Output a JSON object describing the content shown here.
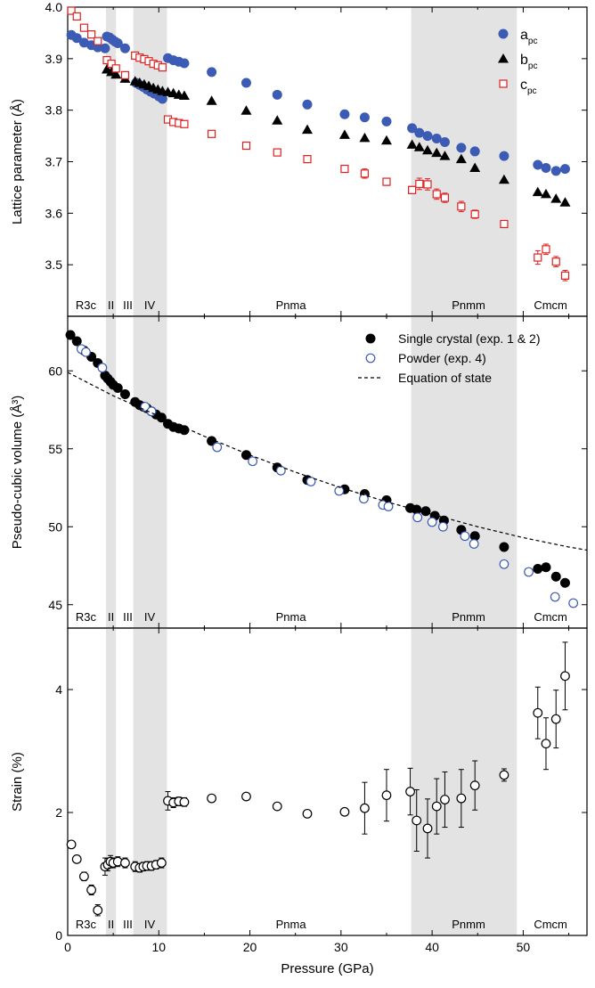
{
  "x_axis": {
    "label": "Pressure (GPa)",
    "range": [
      0,
      57
    ],
    "ticks": [
      0,
      10,
      20,
      30,
      40,
      50
    ],
    "tick_labels": [
      "0",
      "10",
      "20",
      "30",
      "40",
      "50"
    ]
  },
  "shaded_regions": [
    [
      4.2,
      5.3
    ],
    [
      7.2,
      10.9
    ],
    [
      37.7,
      49.3
    ]
  ],
  "phases": [
    {
      "label": "R3c",
      "x": 2.0
    },
    {
      "label": "II",
      "x": 4.75
    },
    {
      "label": "III",
      "x": 6.6
    },
    {
      "label": "IV",
      "x": 9.0
    },
    {
      "label": "Pnma",
      "x": 24.5
    },
    {
      "label": "Pnmm",
      "x": 44.0
    },
    {
      "label": "Cmcm",
      "x": 53.0
    }
  ],
  "colors": {
    "a_series": "#3b5bb5",
    "b_series": "#000000",
    "c_series": "#e02020",
    "powder": "#3b5bb5",
    "shading": "#e3e3e3"
  },
  "chart_data": [
    {
      "type": "scatter",
      "ylabel": "Lattice parameter (Å)",
      "ylim": [
        3.4,
        4.0
      ],
      "yticks": [
        3.5,
        3.6,
        3.7,
        3.8,
        3.9,
        4.0
      ],
      "ytick_labels": [
        "3.5",
        "3.6",
        "3.7",
        "3.8",
        "3.9",
        "4.0"
      ],
      "legend_position": "top-right",
      "series": [
        {
          "name": "a",
          "name_sub": "pc",
          "marker": "circle",
          "x": [
            0.4,
            1.0,
            1.8,
            2.6,
            3.3,
            4.1,
            4.3,
            4.6,
            4.9,
            5.2,
            5.5,
            6.3,
            7.5,
            7.9,
            8.3,
            8.7,
            9.1,
            9.5,
            10.0,
            10.4,
            11.0,
            11.6,
            12.2,
            12.8,
            15.8,
            19.6,
            23.0,
            26.3,
            30.4,
            32.6,
            35.0,
            37.8,
            38.6,
            39.5,
            40.5,
            41.4,
            43.2,
            44.7,
            47.9,
            51.6,
            52.5,
            53.6,
            54.6
          ],
          "y": [
            3.946,
            3.94,
            3.931,
            3.926,
            3.922,
            3.92,
            3.943,
            3.941,
            3.937,
            3.933,
            3.93,
            3.92,
            3.853,
            3.849,
            3.845,
            3.84,
            3.836,
            3.832,
            3.827,
            3.822,
            3.901,
            3.897,
            3.894,
            3.891,
            3.874,
            3.853,
            3.83,
            3.811,
            3.792,
            3.786,
            3.778,
            3.765,
            3.756,
            3.75,
            3.745,
            3.738,
            3.727,
            3.72,
            3.711,
            3.694,
            3.688,
            3.682,
            3.686
          ]
        },
        {
          "name": "b",
          "name_sub": "pc",
          "marker": "triangle",
          "x": [
            4.3,
            4.8,
            5.3,
            6.3,
            7.4,
            7.9,
            8.4,
            8.9,
            9.4,
            9.9,
            10.4,
            11.0,
            11.6,
            12.2,
            12.8,
            15.8,
            19.6,
            23.0,
            26.3,
            30.4,
            32.6,
            35.0,
            37.8,
            38.6,
            39.5,
            40.5,
            41.4,
            43.2,
            44.7,
            47.9,
            51.6,
            52.5,
            53.6,
            54.6
          ],
          "y": [
            3.879,
            3.874,
            3.869,
            3.861,
            3.856,
            3.853,
            3.85,
            3.847,
            3.843,
            3.84,
            3.837,
            3.835,
            3.833,
            3.83,
            3.828,
            3.818,
            3.799,
            3.78,
            3.762,
            3.752,
            3.746,
            3.741,
            3.733,
            3.728,
            3.722,
            3.717,
            3.711,
            3.705,
            3.688,
            3.665,
            3.641,
            3.637,
            3.628,
            3.621
          ]
        },
        {
          "name": "c",
          "name_sub": "pc",
          "marker": "square-open",
          "x": [
            0.4,
            1.0,
            1.8,
            2.6,
            3.3,
            4.3,
            4.8,
            5.3,
            6.3,
            7.4,
            7.9,
            8.4,
            8.9,
            9.4,
            9.9,
            10.4,
            11.0,
            11.6,
            12.2,
            12.8,
            15.8,
            19.6,
            23.0,
            26.3,
            30.4,
            32.6,
            35.0,
            37.8,
            38.6,
            39.5,
            40.5,
            41.4,
            43.2,
            44.7,
            47.9,
            51.6,
            52.5,
            53.6,
            54.6
          ],
          "y": [
            3.993,
            3.982,
            3.96,
            3.947,
            3.934,
            3.897,
            3.89,
            3.881,
            3.868,
            3.906,
            3.902,
            3.899,
            3.895,
            3.89,
            3.887,
            3.883,
            3.782,
            3.777,
            3.775,
            3.773,
            3.754,
            3.731,
            3.718,
            3.705,
            3.686,
            3.677,
            3.661,
            3.645,
            3.657,
            3.656,
            3.637,
            3.63,
            3.613,
            3.598,
            3.579,
            3.514,
            3.53,
            3.506,
            3.479
          ],
          "y_err": [
            0,
            0,
            0,
            0,
            0,
            0,
            0,
            0,
            0,
            0,
            0,
            0,
            0,
            0,
            0,
            0,
            0,
            0,
            0,
            0,
            0,
            0,
            0,
            0,
            0,
            0.009,
            0.007,
            0.007,
            0.011,
            0.011,
            0.01,
            0.009,
            0.01,
            0.008,
            0.0,
            0.013,
            0.01,
            0.01,
            0.01
          ]
        }
      ]
    },
    {
      "type": "scatter",
      "ylabel": "Pseudo-cubic volume (Å³)",
      "ylim": [
        43.5,
        63.5
      ],
      "yticks": [
        45,
        50,
        55,
        60
      ],
      "ytick_labels": [
        "45",
        "50",
        "55",
        "60"
      ],
      "legend_position": "top-right",
      "series": [
        {
          "name": "Single crystal (exp. 1 & 2)",
          "marker": "circle-filled",
          "x": [
            0.3,
            1.0,
            1.8,
            2.6,
            3.3,
            4.1,
            4.4,
            4.7,
            5.0,
            5.5,
            6.3,
            7.4,
            7.9,
            8.3,
            8.7,
            9.2,
            9.7,
            10.3,
            11.0,
            11.6,
            12.2,
            12.8,
            15.8,
            19.6,
            23.0,
            26.3,
            30.4,
            32.6,
            35.0,
            37.6,
            38.3,
            39.3,
            40.3,
            41.3,
            43.2,
            44.7,
            47.9,
            51.6,
            52.5,
            53.6,
            54.6
          ],
          "y": [
            62.3,
            61.9,
            61.3,
            60.9,
            60.5,
            59.7,
            59.5,
            59.3,
            59.1,
            58.9,
            58.5,
            58.0,
            57.8,
            57.7,
            57.6,
            57.4,
            57.2,
            57.0,
            56.6,
            56.4,
            56.3,
            56.2,
            55.5,
            54.6,
            53.8,
            53.0,
            52.4,
            52.1,
            51.7,
            51.2,
            51.1,
            51.0,
            50.7,
            50.4,
            49.8,
            49.4,
            48.7,
            47.3,
            47.4,
            46.8,
            46.4
          ]
        },
        {
          "name": "Powder (exp. 4)",
          "marker": "circle-open",
          "x": [
            1.5,
            2.0,
            3.8,
            8.5,
            9.2,
            16.4,
            20.3,
            23.4,
            26.7,
            29.8,
            32.5,
            34.6,
            35.2,
            38.4,
            40.0,
            41.2,
            43.6,
            44.6,
            47.9,
            50.6,
            53.5,
            55.5
          ],
          "y": [
            61.4,
            61.2,
            60.2,
            57.7,
            57.4,
            55.1,
            54.2,
            53.6,
            52.9,
            52.3,
            51.8,
            51.4,
            51.3,
            50.6,
            50.3,
            50.0,
            49.4,
            48.9,
            47.6,
            47.1,
            45.5,
            45.1
          ]
        },
        {
          "name": "Equation of state",
          "marker": "dashed-line",
          "x": [
            0,
            5,
            10,
            15,
            20,
            25,
            30,
            35,
            40,
            45,
            50,
            55,
            57
          ],
          "y": [
            59.9,
            58.4,
            57.1,
            55.8,
            54.6,
            53.5,
            52.5,
            51.6,
            50.8,
            50.0,
            49.3,
            48.7,
            48.5
          ]
        }
      ]
    },
    {
      "type": "scatter",
      "ylabel": "Strain (%)",
      "ylim": [
        0,
        5
      ],
      "yticks": [
        0,
        2,
        4
      ],
      "ytick_labels": [
        "0",
        "2",
        "4"
      ],
      "series": [
        {
          "marker": "circle-open",
          "x": [
            0.4,
            1.0,
            1.8,
            2.6,
            3.3,
            4.1,
            4.4,
            4.7,
            5.0,
            5.5,
            6.3,
            7.4,
            7.9,
            8.3,
            8.7,
            9.2,
            9.7,
            10.3,
            11.0,
            11.6,
            12.2,
            12.8,
            15.8,
            19.6,
            23.0,
            26.3,
            30.4,
            32.6,
            35.0,
            37.6,
            38.3,
            39.5,
            40.5,
            41.4,
            43.2,
            44.7,
            47.9,
            51.6,
            52.5,
            53.6,
            54.6
          ],
          "y": [
            1.48,
            1.24,
            0.96,
            0.74,
            0.41,
            1.12,
            1.15,
            1.2,
            1.18,
            1.2,
            1.18,
            1.12,
            1.1,
            1.12,
            1.13,
            1.13,
            1.15,
            1.18,
            2.19,
            2.16,
            2.18,
            2.17,
            2.23,
            2.26,
            2.1,
            1.98,
            2.01,
            2.07,
            2.28,
            2.34,
            1.87,
            1.74,
            2.1,
            2.21,
            2.23,
            2.44,
            2.61,
            3.62,
            3.12,
            3.52,
            4.22
          ],
          "y_err": [
            0,
            0,
            0.07,
            0.08,
            0.09,
            0.14,
            0.1,
            0.1,
            0.08,
            0.08,
            0.08,
            0.08,
            0.07,
            0.07,
            0.07,
            0.07,
            0.07,
            0.08,
            0.15,
            0.08,
            0.07,
            0.07,
            0.04,
            0.04,
            0.04,
            0.05,
            0.04,
            0.42,
            0.42,
            0.38,
            0.5,
            0.48,
            0.45,
            0.45,
            0.47,
            0.4,
            0.1,
            0.42,
            0.42,
            0.47,
            0.55
          ]
        }
      ]
    }
  ]
}
